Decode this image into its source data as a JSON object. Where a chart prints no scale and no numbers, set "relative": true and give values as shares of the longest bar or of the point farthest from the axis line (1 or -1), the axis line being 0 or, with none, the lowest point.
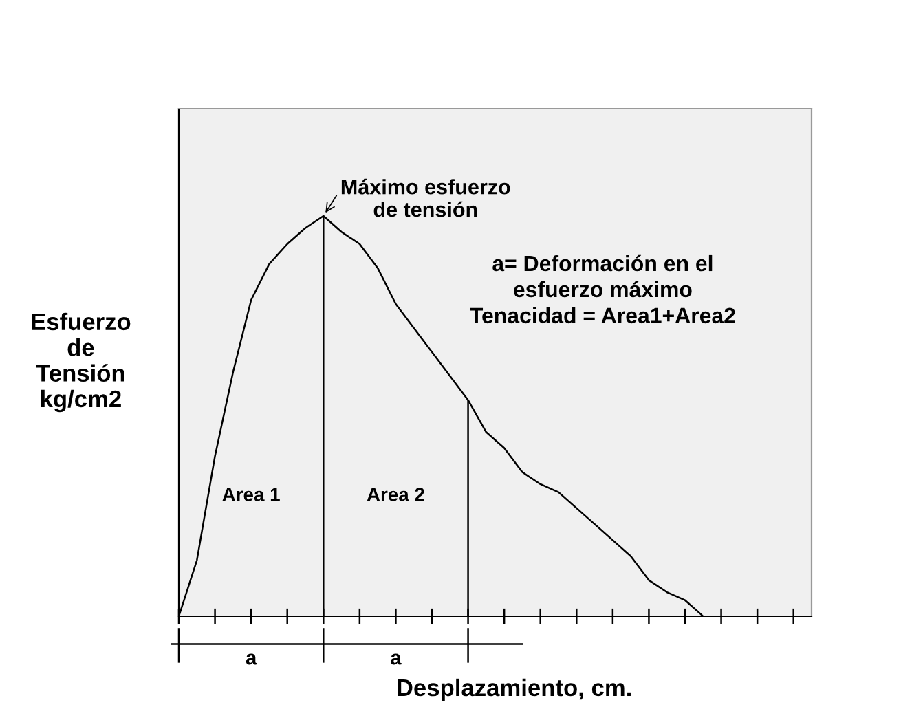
{
  "chart_data": {
    "type": "line",
    "relative": true,
    "xlabel": "Desplazamiento, cm.",
    "ylabel": "Esfuerzo\nde\nTensión\nkg/cm2",
    "categories": [
      null,
      null,
      null,
      null,
      null,
      null,
      null,
      null,
      null,
      null,
      null,
      null,
      null,
      null,
      null,
      null,
      null,
      null,
      null,
      null,
      null,
      null,
      null,
      null,
      null,
      null,
      null,
      null,
      null,
      null,
      null,
      null,
      null,
      null,
      null,
      null
    ],
    "series": [
      {
        "color": "#000000",
        "values": [
          0,
          0.14,
          0.4,
          0.61,
          0.79,
          0.88,
          0.93,
          0.97,
          1.0,
          0.96,
          0.93,
          0.87,
          0.78,
          0.72,
          0.66,
          0.6,
          0.54,
          0.46,
          0.42,
          0.36,
          0.33,
          0.31,
          0.27,
          0.23,
          0.19,
          0.15,
          0.09,
          0.06,
          0.04,
          0,
          null,
          null,
          null,
          null,
          null,
          null
        ]
      }
    ],
    "annotations": [
      "Máximo esfuerzo\nde tensión",
      "Area 1",
      "Area 2",
      "a= Deformación en el\nesfuerzo máximo\nTenacidad = Area1+Area2",
      "a",
      "a"
    ],
    "line_style": "solid"
  }
}
